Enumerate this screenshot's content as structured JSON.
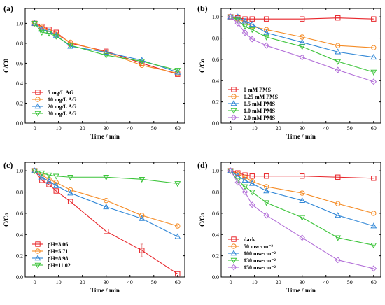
{
  "chart_data": [
    {
      "type": "line",
      "panel_label": "(a)",
      "xlabel": "Time / min",
      "ylabel": "C/C0",
      "xlim": [
        -4,
        63
      ],
      "ylim": [
        0,
        1.15
      ],
      "xticks": [
        0,
        10,
        20,
        30,
        40,
        50,
        60
      ],
      "yticks": [
        0.0,
        0.2,
        0.4,
        0.6,
        0.8,
        1.0
      ],
      "legend_position": "bottom-left",
      "x": [
        0,
        3,
        6,
        9,
        15,
        30,
        45,
        60
      ],
      "series": [
        {
          "name": "5 mg/L AG",
          "color": "#e8262b",
          "marker": "square",
          "values": [
            1.0,
            0.97,
            0.94,
            0.91,
            0.8,
            0.72,
            0.6,
            0.49
          ]
        },
        {
          "name": "10 mg/L AG",
          "color": "#f58c26",
          "marker": "circle",
          "values": [
            1.0,
            0.96,
            0.92,
            0.89,
            0.81,
            0.71,
            0.58,
            0.5
          ]
        },
        {
          "name": "20 mg/L AG",
          "color": "#2f86d6",
          "marker": "triangle-up",
          "values": [
            1.0,
            0.94,
            0.92,
            0.88,
            0.77,
            0.71,
            0.63,
            0.51
          ]
        },
        {
          "name": "30 mg/L AG",
          "color": "#3cc43a",
          "marker": "triangle-down",
          "values": [
            1.0,
            0.91,
            0.9,
            0.87,
            0.78,
            0.68,
            0.62,
            0.53
          ]
        }
      ]
    },
    {
      "type": "line",
      "panel_label": "(b)",
      "xlabel": "Time / min",
      "ylabel": "C/Co",
      "xlim": [
        -4,
        63
      ],
      "ylim": [
        0,
        1.08
      ],
      "xticks": [
        0,
        10,
        20,
        30,
        40,
        50,
        60
      ],
      "yticks": [
        0.0,
        0.2,
        0.4,
        0.6,
        0.8,
        1.0
      ],
      "legend_position": "bottom-left",
      "x": [
        0,
        3,
        6,
        9,
        15,
        30,
        45,
        60
      ],
      "series": [
        {
          "name": "0 mM PMS",
          "color": "#e8262b",
          "marker": "square",
          "values": [
            1.0,
            0.99,
            0.98,
            0.98,
            0.98,
            0.98,
            0.99,
            0.98
          ]
        },
        {
          "name": "0.25 mM PMS",
          "color": "#f58c26",
          "marker": "circle",
          "values": [
            1.0,
            0.98,
            0.95,
            0.91,
            0.88,
            0.81,
            0.73,
            0.71
          ]
        },
        {
          "name": "0.5 mM PMS",
          "color": "#2f86d6",
          "marker": "triangle-up",
          "values": [
            1.0,
            1.0,
            0.96,
            0.93,
            0.85,
            0.76,
            0.67,
            0.62
          ]
        },
        {
          "name": "1.0 mM PMS",
          "color": "#3cc43a",
          "marker": "triangle-down",
          "values": [
            1.0,
            0.97,
            0.91,
            0.88,
            0.81,
            0.72,
            0.58,
            0.48
          ]
        },
        {
          "name": "2.0 mM PMS",
          "color": "#b26fd8",
          "marker": "diamond",
          "values": [
            1.0,
            0.94,
            0.85,
            0.79,
            0.73,
            0.62,
            0.5,
            0.39
          ]
        }
      ]
    },
    {
      "type": "line",
      "panel_label": "(c)",
      "xlabel": "Time / min",
      "ylabel": "C/Co",
      "xlim": [
        -4,
        63
      ],
      "ylim": [
        0,
        1.08
      ],
      "xticks": [
        0,
        10,
        20,
        30,
        40,
        50,
        60
      ],
      "yticks": [
        0.0,
        0.2,
        0.4,
        0.6,
        0.8,
        1.0
      ],
      "legend_position": "bottom-left",
      "x": [
        0,
        3,
        6,
        9,
        15,
        30,
        45,
        60
      ],
      "series": [
        {
          "name": "pH=3.06",
          "color": "#e8262b",
          "marker": "square",
          "values": [
            1.0,
            0.91,
            0.87,
            0.81,
            0.71,
            0.43,
            0.25,
            0.03
          ],
          "error": [
            0,
            0,
            0,
            0,
            0,
            0,
            0.06,
            0
          ]
        },
        {
          "name": "pH=5.71",
          "color": "#f58c26",
          "marker": "circle",
          "values": [
            1.0,
            0.96,
            0.92,
            0.89,
            0.82,
            0.72,
            0.58,
            0.48
          ]
        },
        {
          "name": "pH=8.98",
          "color": "#2f86d6",
          "marker": "triangle-up",
          "values": [
            1.0,
            0.94,
            0.9,
            0.86,
            0.79,
            0.66,
            0.55,
            0.38
          ]
        },
        {
          "name": "pH=11.02",
          "color": "#3cc43a",
          "marker": "triangle-down",
          "values": [
            1.0,
            0.98,
            0.96,
            0.95,
            0.94,
            0.94,
            0.92,
            0.88
          ]
        }
      ]
    },
    {
      "type": "line",
      "panel_label": "(d)",
      "xlabel": "Time / min",
      "ylabel": "C/Co",
      "xlim": [
        -4,
        63
      ],
      "ylim": [
        0,
        1.08
      ],
      "xticks": [
        0,
        10,
        20,
        30,
        40,
        50,
        60
      ],
      "yticks": [
        0.0,
        0.2,
        0.4,
        0.6,
        0.8,
        1.0
      ],
      "legend_position": "bottom-left",
      "x": [
        0,
        3,
        6,
        9,
        15,
        30,
        45,
        60
      ],
      "series": [
        {
          "name": "dark",
          "color": "#e8262b",
          "marker": "square",
          "values": [
            1.0,
            0.98,
            0.96,
            0.95,
            0.95,
            0.95,
            0.94,
            0.93
          ]
        },
        {
          "name": "50 mw·cm⁻²",
          "color": "#f58c26",
          "marker": "circle",
          "values": [
            1.0,
            0.97,
            0.94,
            0.9,
            0.85,
            0.79,
            0.69,
            0.6
          ]
        },
        {
          "name": "100 mw·cm⁻²",
          "color": "#2f86d6",
          "marker": "triangle-up",
          "values": [
            1.0,
            0.95,
            0.91,
            0.88,
            0.81,
            0.72,
            0.58,
            0.48
          ]
        },
        {
          "name": "130 mw·cm⁻²",
          "color": "#3cc43a",
          "marker": "triangle-down",
          "values": [
            1.0,
            0.91,
            0.85,
            0.8,
            0.7,
            0.56,
            0.37,
            0.3
          ]
        },
        {
          "name": "150 mw·cm⁻²",
          "color": "#b26fd8",
          "marker": "diamond",
          "values": [
            1.0,
            0.89,
            0.8,
            0.68,
            0.58,
            0.37,
            0.16,
            0.08
          ]
        }
      ]
    }
  ]
}
